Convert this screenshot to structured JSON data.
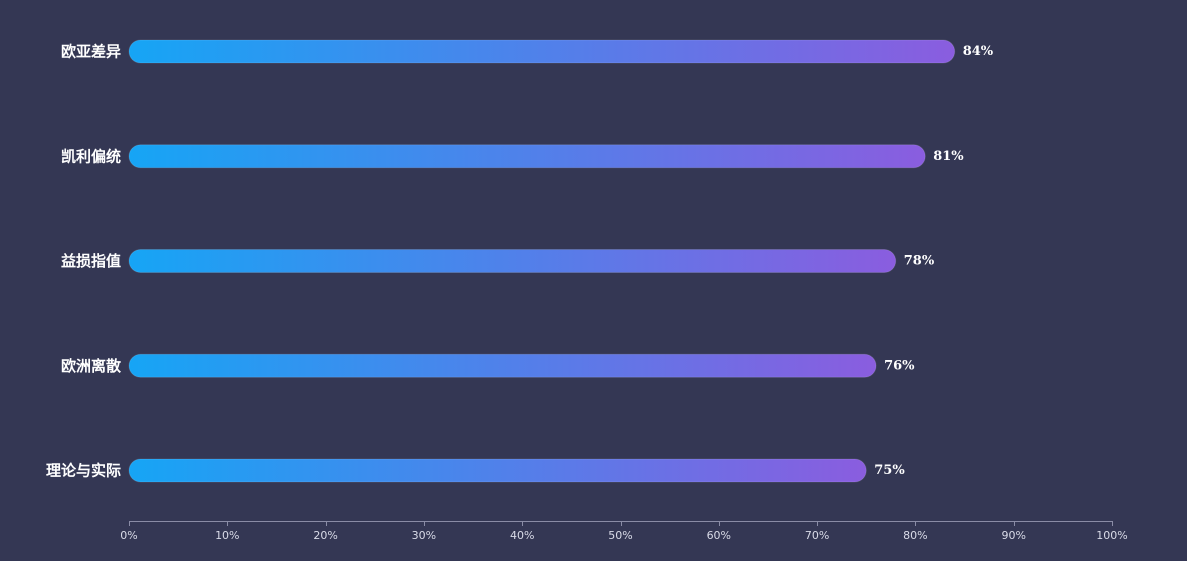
{
  "chart_data": {
    "type": "bar",
    "orientation": "horizontal",
    "title": "",
    "xlabel": "",
    "ylabel": "",
    "categories": [
      "欧亚差异",
      "凯利偏统",
      "益损指值",
      "欧洲离散",
      "理论与实际"
    ],
    "values": [
      84,
      81,
      78,
      76,
      75
    ],
    "value_labels": [
      "84%",
      "81%",
      "78%",
      "76%",
      "75%"
    ],
    "xlim": [
      0,
      100
    ],
    "x_ticks": [
      0,
      10,
      20,
      30,
      40,
      50,
      60,
      70,
      80,
      90,
      100
    ],
    "x_tick_labels": [
      "0%",
      "10%",
      "20%",
      "30%",
      "40%",
      "50%",
      "60%",
      "70%",
      "80%",
      "90%",
      "100%"
    ],
    "grid": false,
    "legend": "none",
    "colors": {
      "background": "#343754",
      "bar_gradient_start": "#16a5f5",
      "bar_gradient_end": "#8a5ddf",
      "axis": "#8a8ca6",
      "text": "#ffffff",
      "tick_text": "#d9dbe8"
    }
  }
}
